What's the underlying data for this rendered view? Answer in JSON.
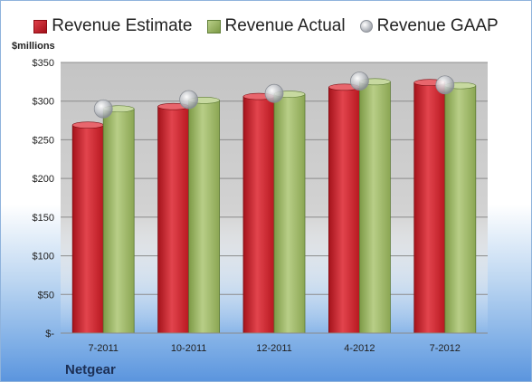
{
  "chart_data": {
    "type": "bar",
    "title": "",
    "unit_label": "$millions",
    "xlabel": "",
    "ylabel": "",
    "categories": [
      "7-2011",
      "10-2011",
      "12-2011",
      "4-2012",
      "7-2012"
    ],
    "series": [
      {
        "name": "Revenue Estimate",
        "kind": "bar",
        "color": "#c8202a",
        "values": [
          269,
          293,
          306,
          318,
          324
        ]
      },
      {
        "name": "Revenue Actual",
        "kind": "bar",
        "color": "#9bb35f",
        "values": [
          290,
          301,
          309,
          325,
          320
        ]
      },
      {
        "name": "Revenue GAAP",
        "kind": "marker",
        "color": "#b5b8bd",
        "values": [
          290,
          302,
          310,
          326,
          321
        ]
      }
    ],
    "ylim": [
      0,
      350
    ],
    "yticks": [
      0,
      50,
      100,
      150,
      200,
      250,
      300,
      350
    ],
    "ytick_labels": [
      "$-",
      "$50",
      "$100",
      "$150",
      "$200",
      "$250",
      "$300",
      "$350"
    ],
    "grid": true,
    "legend_position": "top"
  },
  "footer": {
    "company": "Netgear"
  }
}
